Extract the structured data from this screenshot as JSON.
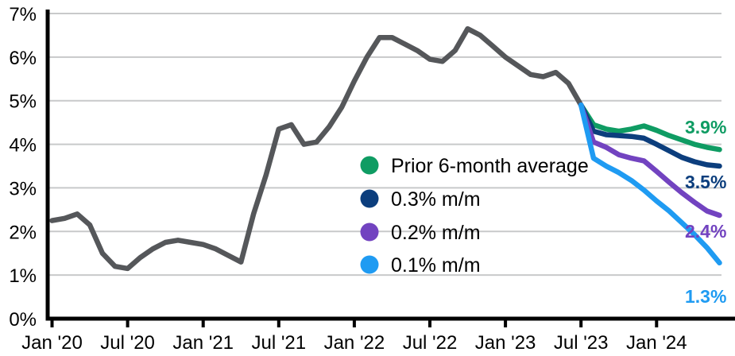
{
  "chart_data": {
    "type": "line",
    "title": "",
    "grid": true,
    "legend_position": "center-right of plot, vertical list",
    "y_axis": {
      "tick_labels": [
        "0%",
        "1%",
        "2%",
        "3%",
        "4%",
        "5%",
        "6%",
        "7%"
      ],
      "tick_values": [
        0,
        1,
        2,
        3,
        4,
        5,
        6,
        7
      ],
      "range": [
        0,
        7
      ],
      "unit": "percent"
    },
    "x_axis": {
      "tick_labels": [
        "Jan '20",
        "Jul '20",
        "Jan '21",
        "Jul '21",
        "Jan '22",
        "Jul '22",
        "Jan '23",
        "Jul '23",
        "Jan '24"
      ],
      "tick_month_indices": [
        0,
        6,
        12,
        18,
        24,
        30,
        36,
        42,
        48
      ],
      "months_span": "Jan 2020 to Jun 2024"
    },
    "series": [
      {
        "id": "historical",
        "label": "",
        "color": "#55575a",
        "start_month_index": 0,
        "values": [
          2.25,
          2.3,
          2.4,
          2.15,
          1.5,
          1.2,
          1.15,
          1.4,
          1.6,
          1.75,
          1.8,
          1.75,
          1.7,
          1.6,
          1.45,
          1.3,
          2.4,
          3.3,
          4.35,
          4.45,
          4.0,
          4.05,
          4.4,
          4.85,
          5.45,
          6.0,
          6.45,
          6.45,
          6.3,
          6.15,
          5.95,
          5.9,
          6.15,
          6.65,
          6.5,
          6.25,
          6.0,
          5.8,
          5.6,
          5.55,
          5.65,
          5.4,
          4.9
        ]
      },
      {
        "id": "prior-6-month-average",
        "label": "Prior 6-month average",
        "color": "#0f9c63",
        "start_month_index": 42,
        "values": [
          4.9,
          4.45,
          4.35,
          4.3,
          4.35,
          4.42,
          4.32,
          4.2,
          4.1,
          4.0,
          3.93,
          3.88
        ]
      },
      {
        "id": "scenario-0p3",
        "label": "0.3% m/m",
        "color": "#0c3e7d",
        "start_month_index": 42,
        "values": [
          4.9,
          4.3,
          4.22,
          4.2,
          4.18,
          4.14,
          4.0,
          3.85,
          3.7,
          3.6,
          3.53,
          3.5
        ]
      },
      {
        "id": "scenario-0p2",
        "label": "0.2% m/m",
        "color": "#7243c0",
        "start_month_index": 42,
        "values": [
          4.9,
          4.05,
          3.93,
          3.76,
          3.68,
          3.62,
          3.38,
          3.13,
          2.89,
          2.67,
          2.47,
          2.37
        ]
      },
      {
        "id": "scenario-0p1",
        "label": "0.1% m/m",
        "color": "#1f9bf2",
        "start_month_index": 42,
        "values": [
          4.9,
          3.68,
          3.5,
          3.35,
          3.17,
          2.95,
          2.7,
          2.47,
          2.2,
          1.93,
          1.63,
          1.28
        ]
      }
    ],
    "legend": {
      "items": [
        {
          "label": "Prior 6-month average",
          "color": "#0f9c63"
        },
        {
          "label": "0.3% m/m",
          "color": "#0c3e7d"
        },
        {
          "label": "0.2% m/m",
          "color": "#7243c0"
        },
        {
          "label": "0.1% m/m",
          "color": "#1f9bf2"
        }
      ]
    },
    "end_labels": [
      {
        "text": "3.9%",
        "color": "#0f9c63",
        "series": "Prior 6-month average"
      },
      {
        "text": "3.5%",
        "color": "#0c3e7d",
        "series": "0.3% m/m"
      },
      {
        "text": "2.4%",
        "color": "#7243c0",
        "series": "0.2% m/m"
      },
      {
        "text": "1.3%",
        "color": "#1f9bf2",
        "series": "0.1% m/m"
      }
    ],
    "colors": {
      "historical_line": "#55575a",
      "gridline": "#c8c9ca",
      "axis": "#000000"
    }
  }
}
